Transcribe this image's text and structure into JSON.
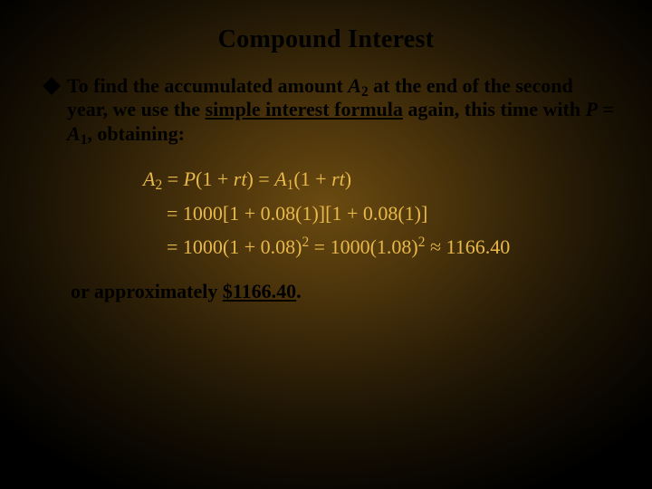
{
  "colors": {
    "text_body": "#000000",
    "equation": "#e7b84a",
    "bg_center": "#6a4a10",
    "bg_outer": "#000000"
  },
  "title": "Compound Interest",
  "bullet": {
    "pre": "To find the accumulated amount ",
    "A2_var": "A",
    "A2_sub": "2",
    "mid1": " at the end of the second year, we use the ",
    "underline": "simple interest formula",
    "mid2": " again, this time with ",
    "P": "P",
    "eq": " = ",
    "A1_var": "A",
    "A1_sub": "1",
    "post": ", obtaining:"
  },
  "eq": {
    "l1_A": "A",
    "l1_sub2": "2",
    "l1_a": " = ",
    "l1_P": "P",
    "l1_b": "(1 + ",
    "l1_rt": "rt",
    "l1_c": ") = ",
    "l1_A1": "A",
    "l1_sub1": "1",
    "l1_d": "(1 + ",
    "l1_rt2": "rt",
    "l1_e": ")",
    "l2": "= 1000[1 + 0.08(1)][1 + 0.08(1)]",
    "l3a": "= 1000(1 + 0.08)",
    "l3sup": "2",
    "l3b": " = 1000(1.08)",
    "l3sup2": "2",
    "l3c": " ≈ 1166.40"
  },
  "closing": {
    "pre": "or approximately ",
    "amount": "$1166.40",
    "period": "."
  }
}
